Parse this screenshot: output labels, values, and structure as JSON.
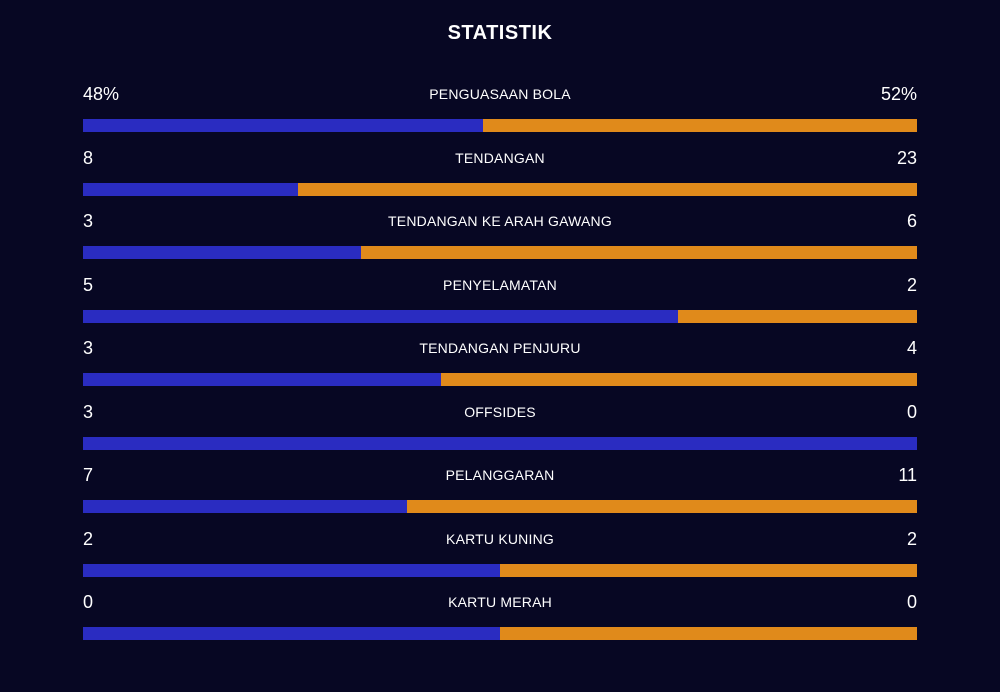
{
  "title": "STATISTIK",
  "colors": {
    "background": "#070723",
    "home": "#2a2cc1",
    "away": "#e08a1b",
    "text": "#ffffff"
  },
  "stats": [
    {
      "label": "PENGUASAAN BOLA",
      "home": "48%",
      "away": "52%",
      "home_share": 0.48
    },
    {
      "label": "TENDANGAN",
      "home": "8",
      "away": "23",
      "home_share": 0.258
    },
    {
      "label": "TENDANGAN KE ARAH GAWANG",
      "home": "3",
      "away": "6",
      "home_share": 0.333
    },
    {
      "label": "PENYELAMATAN",
      "home": "5",
      "away": "2",
      "home_share": 0.714
    },
    {
      "label": "TENDANGAN PENJURU",
      "home": "3",
      "away": "4",
      "home_share": 0.429
    },
    {
      "label": "OFFSIDES",
      "home": "3",
      "away": "0",
      "home_share": 1.0
    },
    {
      "label": "PELANGGARAN",
      "home": "7",
      "away": "11",
      "home_share": 0.389
    },
    {
      "label": "KARTU KUNING",
      "home": "2",
      "away": "2",
      "home_share": 0.5
    },
    {
      "label": "KARTU MERAH",
      "home": "0",
      "away": "0",
      "home_share": 0.5
    }
  ]
}
